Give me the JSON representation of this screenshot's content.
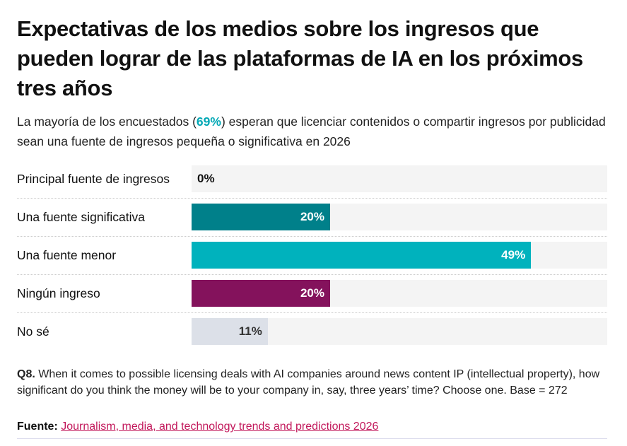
{
  "chart_data": {
    "type": "bar",
    "orientation": "horizontal",
    "title": "Expectativas de los medios sobre los ingresos que pueden lograr de las plataformas de IA en los próximos tres años",
    "subtitle_pre": "La mayoría de los encuestados (",
    "subtitle_highlight": "69%",
    "subtitle_post": ") esperan que licenciar contenidos o compartir ingresos por publicidad sean una fuente de ingresos pequeña o significativa en 2026",
    "categories": [
      "Principal fuente de ingresos",
      "Una fuente significativa",
      "Una fuente menor",
      "Ningún ingreso",
      "No sé"
    ],
    "values": [
      0,
      20,
      49,
      20,
      11
    ],
    "labels": [
      "0%",
      "20%",
      "49%",
      "20%",
      "11%"
    ],
    "colors": [
      "#00808a",
      "#00808a",
      "#00b2bd",
      "#84125c",
      "#dce0e8"
    ],
    "label_colors": [
      "#111111",
      "#ffffff",
      "#ffffff",
      "#ffffff",
      "#333333"
    ],
    "xlim": [
      0,
      60
    ],
    "unit": "%"
  },
  "note": {
    "bold": "Q8.",
    "text": " When it comes to possible licensing deals with AI companies around news content IP (intellectual property), how significant do you think the money will be to your company in, say, three years’ time? Choose one. Base = 272"
  },
  "source": {
    "label": "Fuente:",
    "link": "Journalism, media, and technology trends and predictions 2026"
  }
}
